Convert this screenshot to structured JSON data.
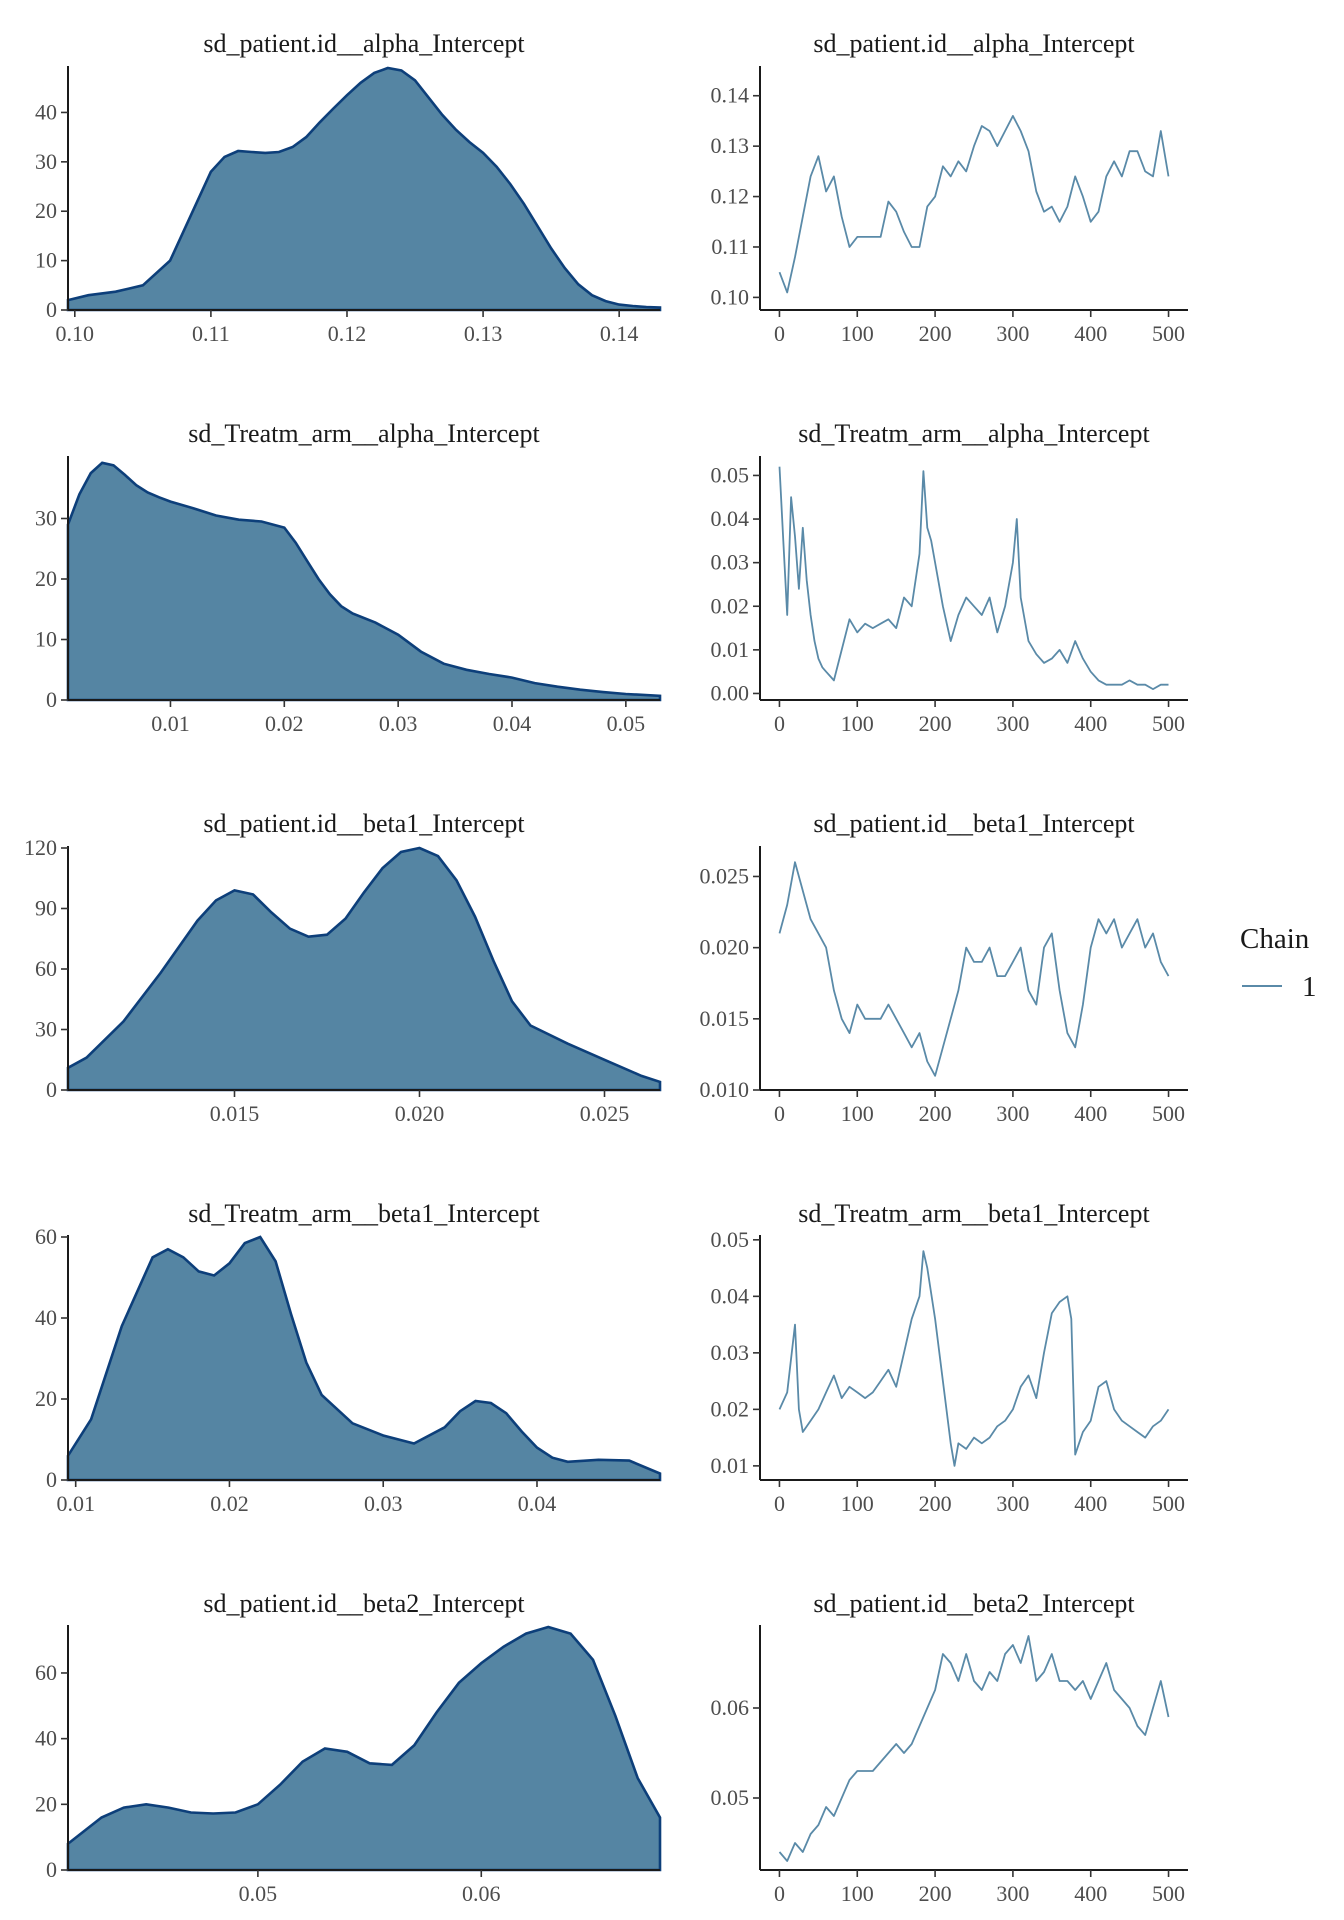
{
  "colors": {
    "fill": "#5585a3",
    "density_line": "#0d3f7a",
    "trace_line": "#5a8aa8",
    "axis": "#1a1a1a"
  },
  "legend": {
    "title": "Chain",
    "items": [
      {
        "label": "1",
        "color": "#5a8aa8"
      }
    ]
  },
  "chart_data": [
    {
      "type": "area",
      "role": "density",
      "title": "sd_patient.id__alpha_Intercept",
      "xlim": [
        0.0995,
        0.143
      ],
      "ylim": [
        0,
        49
      ],
      "xticks": [
        0.1,
        0.11,
        0.12,
        0.13,
        0.14
      ],
      "xtick_labels": [
        "0.10",
        "0.11",
        "0.12",
        "0.13",
        "0.14"
      ],
      "yticks": [
        0,
        10,
        20,
        30,
        40
      ],
      "ytick_labels": [
        "0",
        "10",
        "20",
        "30",
        "40"
      ],
      "x": [
        0.0995,
        0.101,
        0.103,
        0.105,
        0.107,
        0.109,
        0.11,
        0.111,
        0.112,
        0.113,
        0.114,
        0.115,
        0.116,
        0.117,
        0.118,
        0.119,
        0.12,
        0.121,
        0.122,
        0.123,
        0.124,
        0.125,
        0.126,
        0.127,
        0.128,
        0.129,
        0.13,
        0.131,
        0.132,
        0.133,
        0.134,
        0.135,
        0.136,
        0.137,
        0.138,
        0.139,
        0.14,
        0.141,
        0.142,
        0.143
      ],
      "y": [
        2,
        3,
        3.7,
        5,
        10,
        22,
        28,
        31,
        32.2,
        32,
        31.8,
        32,
        33,
        35,
        38,
        40.8,
        43.5,
        46,
        48,
        49,
        48.5,
        46.5,
        43,
        39.5,
        36.5,
        34,
        31.8,
        29,
        25.5,
        21.5,
        17,
        12.5,
        8.5,
        5.2,
        3,
        1.8,
        1.1,
        0.8,
        0.6,
        0.5
      ]
    },
    {
      "type": "line",
      "role": "trace",
      "title": "sd_patient.id__alpha_Intercept",
      "xlim": [
        -25,
        525
      ],
      "ylim": [
        0.0975,
        0.1455
      ],
      "xticks": [
        0,
        100,
        200,
        300,
        400,
        500
      ],
      "xtick_labels": [
        "0",
        "100",
        "200",
        "300",
        "400",
        "500"
      ],
      "yticks": [
        0.1,
        0.11,
        0.12,
        0.13,
        0.14
      ],
      "ytick_labels": [
        "0.10",
        "0.11",
        "0.12",
        "0.13",
        "0.14"
      ],
      "x": [
        0,
        10,
        20,
        30,
        40,
        50,
        60,
        70,
        80,
        90,
        100,
        110,
        120,
        130,
        140,
        150,
        160,
        170,
        180,
        190,
        200,
        210,
        220,
        230,
        240,
        250,
        260,
        270,
        280,
        290,
        300,
        310,
        320,
        330,
        340,
        350,
        360,
        370,
        380,
        390,
        400,
        410,
        420,
        430,
        440,
        450,
        460,
        470,
        480,
        490,
        500
      ],
      "y": [
        0.105,
        0.101,
        0.108,
        0.116,
        0.124,
        0.128,
        0.121,
        0.124,
        0.116,
        0.11,
        0.112,
        0.112,
        0.112,
        0.112,
        0.119,
        0.117,
        0.113,
        0.11,
        0.11,
        0.118,
        0.12,
        0.126,
        0.124,
        0.127,
        0.125,
        0.13,
        0.134,
        0.133,
        0.13,
        0.133,
        0.136,
        0.133,
        0.129,
        0.121,
        0.117,
        0.118,
        0.115,
        0.118,
        0.124,
        0.12,
        0.115,
        0.117,
        0.124,
        0.127,
        0.124,
        0.129,
        0.129,
        0.125,
        0.124,
        0.133,
        0.124
      ]
    },
    {
      "type": "area",
      "role": "density",
      "title": "sd_Treatm_arm__alpha_Intercept",
      "xlim": [
        0.001,
        0.053
      ],
      "ylim": [
        0,
        40
      ],
      "xticks": [
        0.01,
        0.02,
        0.03,
        0.04,
        0.05
      ],
      "xtick_labels": [
        "0.01",
        "0.02",
        "0.03",
        "0.04",
        "0.05"
      ],
      "yticks": [
        0,
        10,
        20,
        30
      ],
      "ytick_labels": [
        "0",
        "10",
        "20",
        "30"
      ],
      "x": [
        0.001,
        0.002,
        0.003,
        0.004,
        0.005,
        0.006,
        0.007,
        0.008,
        0.009,
        0.01,
        0.012,
        0.014,
        0.016,
        0.018,
        0.02,
        0.021,
        0.022,
        0.023,
        0.024,
        0.025,
        0.026,
        0.028,
        0.03,
        0.032,
        0.034,
        0.036,
        0.038,
        0.04,
        0.042,
        0.044,
        0.046,
        0.048,
        0.05,
        0.053
      ],
      "y": [
        29,
        34,
        37.5,
        39.2,
        38.8,
        37.2,
        35.5,
        34.3,
        33.5,
        32.8,
        31.7,
        30.5,
        29.8,
        29.5,
        28.5,
        26,
        23,
        20,
        17.5,
        15.5,
        14.3,
        12.8,
        10.8,
        8,
        6,
        5,
        4.3,
        3.7,
        2.8,
        2.2,
        1.7,
        1.3,
        1,
        0.7
      ]
    },
    {
      "type": "line",
      "role": "trace",
      "title": "sd_Treatm_arm__alpha_Intercept",
      "xlim": [
        -25,
        525
      ],
      "ylim": [
        -0.0015,
        0.054
      ],
      "xticks": [
        0,
        100,
        200,
        300,
        400,
        500
      ],
      "xtick_labels": [
        "0",
        "100",
        "200",
        "300",
        "400",
        "500"
      ],
      "yticks": [
        0.0,
        0.01,
        0.02,
        0.03,
        0.04,
        0.05
      ],
      "ytick_labels": [
        "0.00",
        "0.01",
        "0.02",
        "0.03",
        "0.04",
        "0.05"
      ],
      "x": [
        0,
        5,
        10,
        15,
        20,
        25,
        30,
        35,
        40,
        45,
        50,
        55,
        60,
        65,
        70,
        80,
        90,
        100,
        110,
        120,
        130,
        140,
        150,
        160,
        170,
        180,
        185,
        190,
        195,
        200,
        210,
        220,
        230,
        240,
        250,
        260,
        270,
        280,
        290,
        300,
        305,
        310,
        320,
        330,
        340,
        350,
        360,
        370,
        380,
        390,
        400,
        410,
        420,
        430,
        440,
        450,
        460,
        470,
        480,
        490,
        500
      ],
      "y": [
        0.052,
        0.035,
        0.018,
        0.045,
        0.036,
        0.024,
        0.038,
        0.026,
        0.018,
        0.012,
        0.008,
        0.006,
        0.005,
        0.004,
        0.003,
        0.01,
        0.017,
        0.014,
        0.016,
        0.015,
        0.016,
        0.017,
        0.015,
        0.022,
        0.02,
        0.032,
        0.051,
        0.038,
        0.035,
        0.03,
        0.02,
        0.012,
        0.018,
        0.022,
        0.02,
        0.018,
        0.022,
        0.014,
        0.02,
        0.03,
        0.04,
        0.022,
        0.012,
        0.009,
        0.007,
        0.008,
        0.01,
        0.007,
        0.012,
        0.008,
        0.005,
        0.003,
        0.002,
        0.002,
        0.002,
        0.003,
        0.002,
        0.002,
        0.001,
        0.002,
        0.002
      ]
    },
    {
      "type": "area",
      "role": "density",
      "title": "sd_patient.id__beta1_Intercept",
      "xlim": [
        0.0105,
        0.0265
      ],
      "ylim": [
        0,
        120
      ],
      "xticks": [
        0.015,
        0.02,
        0.025
      ],
      "xtick_labels": [
        "0.015",
        "0.020",
        "0.025"
      ],
      "yticks": [
        0,
        30,
        60,
        90,
        120
      ],
      "ytick_labels": [
        "0",
        "30",
        "60",
        "90",
        "120"
      ],
      "x": [
        0.0105,
        0.011,
        0.012,
        0.013,
        0.014,
        0.0145,
        0.015,
        0.0155,
        0.016,
        0.0165,
        0.017,
        0.0175,
        0.018,
        0.0185,
        0.019,
        0.0195,
        0.02,
        0.0205,
        0.021,
        0.0215,
        0.022,
        0.0225,
        0.023,
        0.024,
        0.025,
        0.026,
        0.0265
      ],
      "y": [
        11,
        16,
        34,
        58,
        84,
        94,
        99,
        97,
        88,
        80,
        76,
        77,
        85,
        98,
        110,
        118,
        120,
        116,
        104,
        86,
        64,
        44,
        32,
        23,
        15,
        7,
        4
      ]
    },
    {
      "type": "line",
      "role": "trace",
      "title": "sd_patient.id__beta1_Intercept",
      "xlim": [
        -25,
        525
      ],
      "ylim": [
        0.01,
        0.027
      ],
      "xticks": [
        0,
        100,
        200,
        300,
        400,
        500
      ],
      "xtick_labels": [
        "0",
        "100",
        "200",
        "300",
        "400",
        "500"
      ],
      "yticks": [
        0.01,
        0.015,
        0.02,
        0.025
      ],
      "ytick_labels": [
        "0.010",
        "0.015",
        "0.020",
        "0.025"
      ],
      "x": [
        0,
        10,
        20,
        30,
        40,
        50,
        60,
        70,
        80,
        90,
        100,
        110,
        120,
        130,
        140,
        150,
        160,
        170,
        180,
        190,
        200,
        210,
        220,
        230,
        240,
        250,
        260,
        270,
        280,
        290,
        300,
        310,
        320,
        330,
        340,
        350,
        360,
        370,
        380,
        390,
        400,
        410,
        420,
        430,
        440,
        450,
        460,
        470,
        480,
        490,
        500
      ],
      "y": [
        0.021,
        0.023,
        0.026,
        0.024,
        0.022,
        0.021,
        0.02,
        0.017,
        0.015,
        0.014,
        0.016,
        0.015,
        0.015,
        0.015,
        0.016,
        0.015,
        0.014,
        0.013,
        0.014,
        0.012,
        0.011,
        0.013,
        0.015,
        0.017,
        0.02,
        0.019,
        0.019,
        0.02,
        0.018,
        0.018,
        0.019,
        0.02,
        0.017,
        0.016,
        0.02,
        0.021,
        0.017,
        0.014,
        0.013,
        0.016,
        0.02,
        0.022,
        0.021,
        0.022,
        0.02,
        0.021,
        0.022,
        0.02,
        0.021,
        0.019,
        0.018
      ]
    },
    {
      "type": "area",
      "role": "density",
      "title": "sd_Treatm_arm__beta1_Intercept",
      "xlim": [
        0.0095,
        0.048
      ],
      "ylim": [
        0,
        60
      ],
      "xticks": [
        0.01,
        0.02,
        0.03,
        0.04
      ],
      "xtick_labels": [
        "0.01",
        "0.02",
        "0.03",
        "0.04"
      ],
      "yticks": [
        0,
        20,
        40,
        60
      ],
      "ytick_labels": [
        "0",
        "20",
        "40",
        "60"
      ],
      "x": [
        0.0095,
        0.011,
        0.013,
        0.015,
        0.016,
        0.017,
        0.018,
        0.019,
        0.02,
        0.021,
        0.022,
        0.023,
        0.024,
        0.025,
        0.026,
        0.028,
        0.03,
        0.032,
        0.034,
        0.035,
        0.036,
        0.037,
        0.038,
        0.039,
        0.04,
        0.041,
        0.042,
        0.044,
        0.046,
        0.048
      ],
      "y": [
        6,
        15,
        38,
        55,
        57,
        55,
        51.5,
        50.5,
        53.5,
        58.5,
        60,
        54,
        41,
        29,
        21,
        14,
        11,
        9,
        13,
        17,
        19.5,
        19,
        16.5,
        12,
        8,
        5.5,
        4.5,
        5,
        4.8,
        1.6
      ]
    },
    {
      "type": "line",
      "role": "trace",
      "title": "sd_Treatm_arm__beta1_Intercept",
      "xlim": [
        -25,
        525
      ],
      "ylim": [
        0.0075,
        0.0505
      ],
      "xticks": [
        0,
        100,
        200,
        300,
        400,
        500
      ],
      "xtick_labels": [
        "0",
        "100",
        "200",
        "300",
        "400",
        "500"
      ],
      "yticks": [
        0.01,
        0.02,
        0.03,
        0.04,
        0.05
      ],
      "ytick_labels": [
        "0.01",
        "0.02",
        "0.03",
        "0.04",
        "0.05"
      ],
      "x": [
        0,
        10,
        20,
        25,
        30,
        40,
        50,
        60,
        70,
        80,
        90,
        100,
        110,
        120,
        130,
        140,
        150,
        160,
        170,
        180,
        185,
        190,
        200,
        210,
        220,
        225,
        230,
        240,
        250,
        260,
        270,
        280,
        290,
        300,
        310,
        320,
        330,
        340,
        350,
        360,
        370,
        375,
        380,
        390,
        400,
        410,
        420,
        430,
        440,
        450,
        460,
        470,
        480,
        490,
        500
      ],
      "y": [
        0.02,
        0.023,
        0.035,
        0.02,
        0.016,
        0.018,
        0.02,
        0.023,
        0.026,
        0.022,
        0.024,
        0.023,
        0.022,
        0.023,
        0.025,
        0.027,
        0.024,
        0.03,
        0.036,
        0.04,
        0.048,
        0.045,
        0.036,
        0.025,
        0.014,
        0.01,
        0.014,
        0.013,
        0.015,
        0.014,
        0.015,
        0.017,
        0.018,
        0.02,
        0.024,
        0.026,
        0.022,
        0.03,
        0.037,
        0.039,
        0.04,
        0.036,
        0.012,
        0.016,
        0.018,
        0.024,
        0.025,
        0.02,
        0.018,
        0.017,
        0.016,
        0.015,
        0.017,
        0.018,
        0.02
      ]
    },
    {
      "type": "area",
      "role": "density",
      "title": "sd_patient.id__beta2_Intercept",
      "xlim": [
        0.0415,
        0.068
      ],
      "ylim": [
        0,
        74
      ],
      "xticks": [
        0.05,
        0.06
      ],
      "xtick_labels": [
        "0.05",
        "0.06"
      ],
      "yticks": [
        0,
        20,
        40,
        60
      ],
      "ytick_labels": [
        "0",
        "20",
        "40",
        "60"
      ],
      "x": [
        0.0415,
        0.043,
        0.044,
        0.045,
        0.046,
        0.047,
        0.048,
        0.049,
        0.05,
        0.051,
        0.052,
        0.053,
        0.054,
        0.055,
        0.056,
        0.057,
        0.058,
        0.059,
        0.06,
        0.061,
        0.062,
        0.063,
        0.064,
        0.065,
        0.066,
        0.067,
        0.068
      ],
      "y": [
        8,
        16,
        19,
        20,
        19,
        17.5,
        17.2,
        17.5,
        20,
        26,
        33,
        37,
        36,
        32.5,
        32,
        38,
        48,
        57,
        63,
        68,
        72,
        74,
        72,
        64,
        47,
        28,
        16
      ]
    },
    {
      "type": "line",
      "role": "trace",
      "title": "sd_patient.id__beta2_Intercept",
      "xlim": [
        -25,
        525
      ],
      "ylim": [
        0.042,
        0.069
      ],
      "xticks": [
        0,
        100,
        200,
        300,
        400,
        500
      ],
      "xtick_labels": [
        "0",
        "100",
        "200",
        "300",
        "400",
        "500"
      ],
      "yticks": [
        0.05,
        0.06
      ],
      "ytick_labels": [
        "0.05",
        "0.06"
      ],
      "x": [
        0,
        10,
        20,
        30,
        40,
        50,
        60,
        70,
        80,
        90,
        100,
        110,
        120,
        130,
        140,
        150,
        160,
        170,
        180,
        190,
        200,
        210,
        220,
        230,
        240,
        250,
        260,
        270,
        280,
        290,
        300,
        310,
        320,
        330,
        340,
        350,
        360,
        370,
        380,
        390,
        400,
        410,
        420,
        430,
        440,
        450,
        460,
        470,
        480,
        490,
        500
      ],
      "y": [
        0.044,
        0.043,
        0.045,
        0.044,
        0.046,
        0.047,
        0.049,
        0.048,
        0.05,
        0.052,
        0.053,
        0.053,
        0.053,
        0.054,
        0.055,
        0.056,
        0.055,
        0.056,
        0.058,
        0.06,
        0.062,
        0.066,
        0.065,
        0.063,
        0.066,
        0.063,
        0.062,
        0.064,
        0.063,
        0.066,
        0.067,
        0.065,
        0.068,
        0.063,
        0.064,
        0.066,
        0.063,
        0.063,
        0.062,
        0.063,
        0.061,
        0.063,
        0.065,
        0.062,
        0.061,
        0.06,
        0.058,
        0.057,
        0.06,
        0.063,
        0.059
      ]
    }
  ]
}
